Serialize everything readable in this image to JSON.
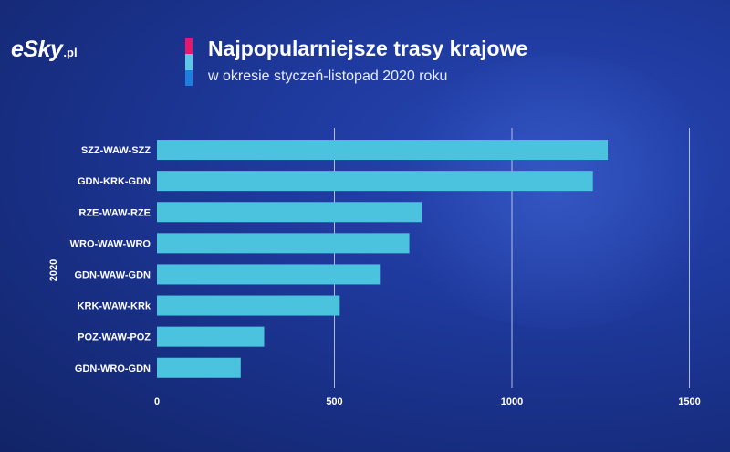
{
  "brand": {
    "logo_main": "eSky",
    "logo_suffix": ".pl"
  },
  "colors": {
    "accent_top": "#e8176a",
    "accent_mid": "#5cc7e6",
    "accent_bottom": "#1d7fe0",
    "bar": "#4cc3de",
    "grid": "#c9d4f2"
  },
  "header": {
    "title": "Najpopularniejsze trasy krajowe",
    "subtitle": "w okresie styczeń-listopad 2020 roku"
  },
  "chart_data": {
    "type": "bar",
    "orientation": "horizontal",
    "title": "Najpopularniejsze trasy krajowe",
    "subtitle": "w okresie styczeń-listopad 2020 roku",
    "ylabel": "2020",
    "xlabel": "",
    "categories": [
      "SZZ-WAW-SZZ",
      "GDN-KRK-GDN",
      "RZE-WAW-RZE",
      "WRO-WAW-WRO",
      "GDN-WAW-GDN",
      "KRK-WAW-KRk",
      "POZ-WAW-POZ",
      "GDN-WRO-GDN"
    ],
    "values": [
      1270,
      1228,
      746,
      711,
      628,
      515,
      302,
      236
    ],
    "xlim": [
      0,
      1500
    ],
    "xticks": [
      0,
      500,
      1000,
      1500
    ],
    "grid": true,
    "legend": "none"
  }
}
